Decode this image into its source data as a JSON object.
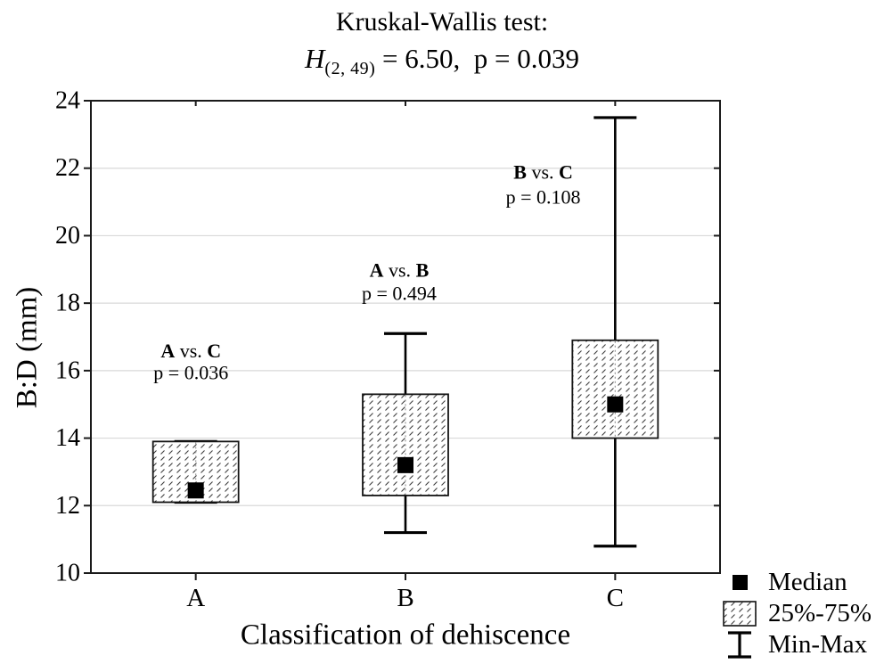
{
  "figure": {
    "background": "#ffffff",
    "text_color": "#000000"
  },
  "title": {
    "line1": "Kruskal-Wallis test:",
    "stat_symbol": "H",
    "stat_subscript": "(2, 49)",
    "stat_rest": " = 6.50,  p = 0.039"
  },
  "axes": {
    "y_label": "B:D (mm)",
    "x_label": "Classification of dehiscence"
  },
  "legend": {
    "items": [
      {
        "icon": "median-square-icon",
        "label": "Median"
      },
      {
        "icon": "iqr-hatch-box-icon",
        "label": "25%-75%"
      },
      {
        "icon": "min-max-whisker-icon",
        "label": "Min-Max"
      }
    ]
  },
  "chart_data": {
    "type": "boxplot",
    "title": "Kruskal-Wallis test: H(2, 49) = 6.50, p = 0.039",
    "xlabel": "Classification of dehiscence",
    "ylabel": "B:D (mm)",
    "ylim": [
      10,
      24
    ],
    "yticks": [
      10,
      12,
      14,
      16,
      18,
      20,
      22,
      24
    ],
    "grid": "horizontal",
    "legend_position": "bottom-right-outside",
    "categories": [
      "A",
      "B",
      "C"
    ],
    "series": [
      {
        "category": "A",
        "min": 12.1,
        "q1": 12.1,
        "median": 12.45,
        "q3": 13.9,
        "max": 13.9
      },
      {
        "category": "B",
        "min": 11.2,
        "q1": 12.3,
        "median": 13.2,
        "q3": 15.3,
        "max": 17.1
      },
      {
        "category": "C",
        "min": 10.8,
        "q1": 14.0,
        "median": 15.0,
        "q3": 16.9,
        "max": 23.5
      }
    ],
    "annotations": [
      {
        "bold_left": "A",
        "mid": " vs. ",
        "bold_right": "C",
        "line2": "p = 0.036",
        "x_frac": 0.159,
        "y_line1": 16.6,
        "y_line2": 15.95
      },
      {
        "bold_left": "A",
        "mid": " vs. ",
        "bold_right": "B",
        "line2": "p = 0.494",
        "x_frac": 0.49,
        "y_line1": 19.0,
        "y_line2": 18.3
      },
      {
        "bold_left": "B",
        "mid": " vs. ",
        "bold_right": "C",
        "line2": "p = 0.108",
        "x_frac": 0.719,
        "y_line1": 21.9,
        "y_line2": 21.15
      }
    ]
  }
}
